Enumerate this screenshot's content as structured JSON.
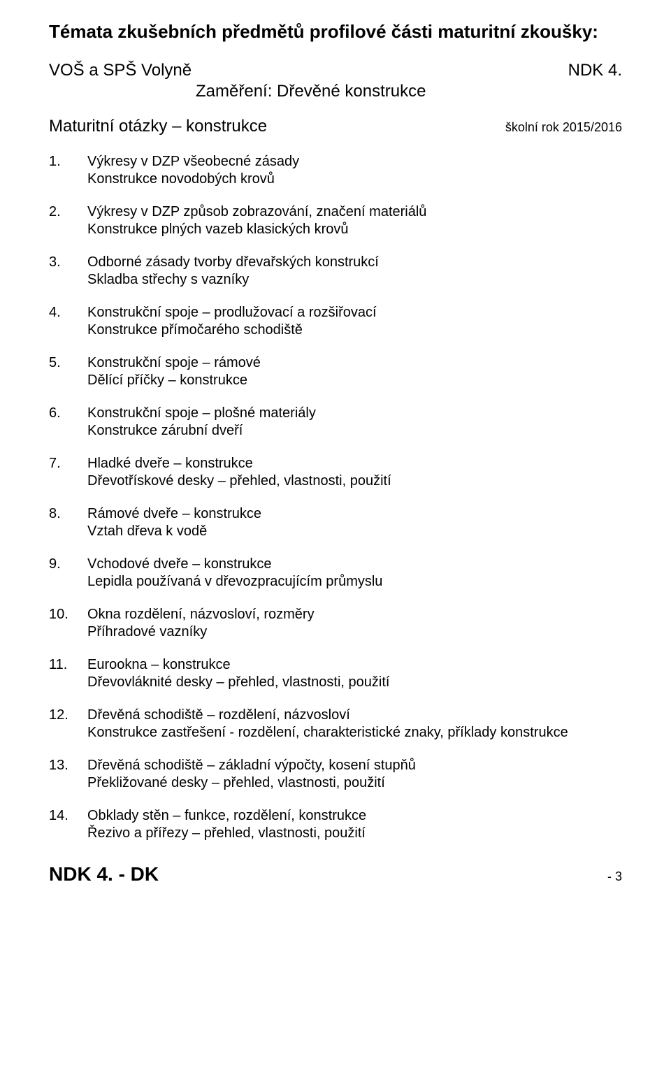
{
  "title": "Témata zkušebních předmětů profilové části maturitní zkoušky:",
  "school": "VOŠ a SPŠ Volyně",
  "code": "NDK 4.",
  "focus_label": "Zaměření: Dřevěné konstrukce",
  "subtitle": "Maturitní otázky – konstrukce",
  "school_year": "školní rok 2015/2016",
  "items": [
    {
      "a": "Výkresy v DZP všeobecné zásady",
      "b": "Konstrukce novodobých krovů"
    },
    {
      "a": "Výkresy v DZP způsob zobrazování, značení materiálů",
      "b": "Konstrukce plných vazeb klasických krovů"
    },
    {
      "a": "Odborné zásady tvorby dřevařských konstrukcí",
      "b": "Skladba střechy s vazníky"
    },
    {
      "a": "Konstrukční spoje – prodlužovací a rozšiřovací",
      "b": "Konstrukce přímočarého schodiště"
    },
    {
      "a": "Konstrukční spoje – rámové",
      "b": "Dělící příčky – konstrukce"
    },
    {
      "a": "Konstrukční spoje – plošné materiály",
      "b": "Konstrukce zárubní dveří"
    },
    {
      "a": "Hladké dveře – konstrukce",
      "b": "Dřevotřískové desky – přehled, vlastnosti, použití"
    },
    {
      "a": "Rámové dveře – konstrukce",
      "b": "Vztah dřeva k vodě"
    },
    {
      "a": "Vchodové dveře – konstrukce",
      "b": "Lepidla používaná v dřevozpracujícím průmyslu"
    },
    {
      "a": "Okna rozdělení, názvosloví, rozměry",
      "b": "Příhradové vazníky"
    },
    {
      "a": "Eurookna –  konstrukce",
      "b": "Dřevovláknité desky – přehled, vlastnosti, použití"
    },
    {
      "a": "Dřevěná schodiště – rozdělení, názvosloví",
      "b": "Konstrukce zastřešení -  rozdělení,  charakteristické znaky, příklady konstrukce"
    },
    {
      "a": "Dřevěná schodiště – základní výpočty, kosení stupňů",
      "b": "Překližované desky – přehled, vlastnosti, použití"
    },
    {
      "a": "Obklady stěn – funkce, rozdělení, konstrukce",
      "b": "Řezivo a přířezy – přehled, vlastnosti, použití"
    }
  ],
  "footer_code": "NDK 4. - DK",
  "page_number": "- 3"
}
